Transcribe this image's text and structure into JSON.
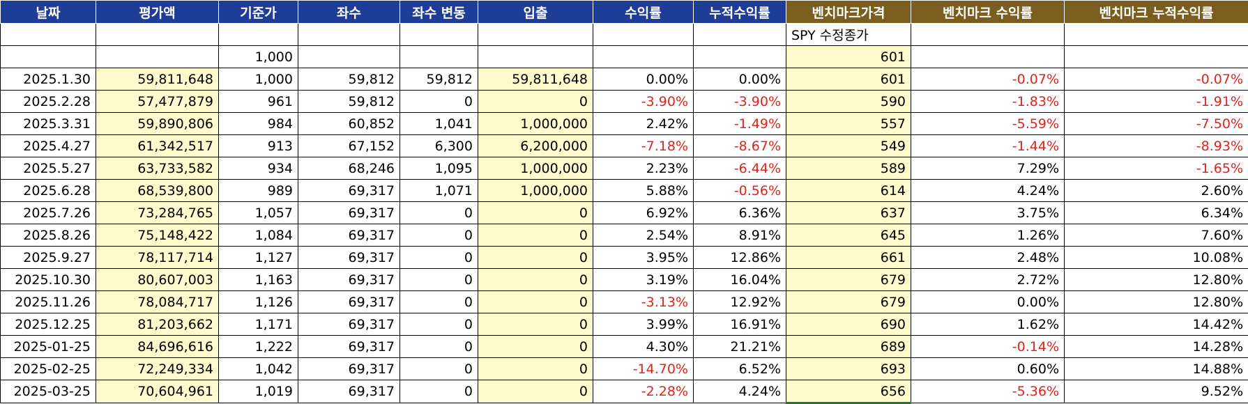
{
  "headers": [
    "날짜",
    "평가액",
    "기준가",
    "좌수",
    "좌수 변동",
    "입출",
    "수익률",
    "누적수익률",
    "벤치마크가격",
    "벤치마크 수익률",
    "벤치마크 누적수익률"
  ],
  "pre_rows": {
    "bench_label": "SPY 수정종가",
    "base_price": "1,000",
    "base_bench": "601"
  },
  "rows": [
    {
      "date": "2025.1.30",
      "value": "59,811,648",
      "nav": "1,000",
      "units": "59,812",
      "units_chg": "59,812",
      "flow": "59,811,648",
      "ret": "0.00%",
      "cum": "0.00%",
      "bench": "601",
      "bret": "-0.07%",
      "bcum": "-0.07%"
    },
    {
      "date": "2025.2.28",
      "value": "57,477,879",
      "nav": "961",
      "units": "59,812",
      "units_chg": "0",
      "flow": "0",
      "ret": "-3.90%",
      "cum": "-3.90%",
      "bench": "590",
      "bret": "-1.83%",
      "bcum": "-1.91%"
    },
    {
      "date": "2025.3.31",
      "value": "59,890,806",
      "nav": "984",
      "units": "60,852",
      "units_chg": "1,041",
      "flow": "1,000,000",
      "ret": "2.42%",
      "cum": "-1.49%",
      "bench": "557",
      "bret": "-5.59%",
      "bcum": "-7.50%"
    },
    {
      "date": "2025.4.27",
      "value": "61,342,517",
      "nav": "913",
      "units": "67,152",
      "units_chg": "6,300",
      "flow": "6,200,000",
      "ret": "-7.18%",
      "cum": "-8.67%",
      "bench": "549",
      "bret": "-1.44%",
      "bcum": "-8.93%"
    },
    {
      "date": "2025.5.27",
      "value": "63,733,582",
      "nav": "934",
      "units": "68,246",
      "units_chg": "1,095",
      "flow": "1,000,000",
      "ret": "2.23%",
      "cum": "-6.44%",
      "bench": "589",
      "bret": "7.29%",
      "bcum": "-1.65%"
    },
    {
      "date": "2025.6.28",
      "value": "68,539,800",
      "nav": "989",
      "units": "69,317",
      "units_chg": "1,071",
      "flow": "1,000,000",
      "ret": "5.88%",
      "cum": "-0.56%",
      "bench": "614",
      "bret": "4.24%",
      "bcum": "2.60%"
    },
    {
      "date": "2025.7.26",
      "value": "73,284,765",
      "nav": "1,057",
      "units": "69,317",
      "units_chg": "0",
      "flow": "0",
      "ret": "6.92%",
      "cum": "6.36%",
      "bench": "637",
      "bret": "3.75%",
      "bcum": "6.34%"
    },
    {
      "date": "2025.8.26",
      "value": "75,148,422",
      "nav": "1,084",
      "units": "69,317",
      "units_chg": "0",
      "flow": "0",
      "ret": "2.54%",
      "cum": "8.91%",
      "bench": "645",
      "bret": "1.26%",
      "bcum": "7.60%"
    },
    {
      "date": "2025.9.27",
      "value": "78,117,714",
      "nav": "1,127",
      "units": "69,317",
      "units_chg": "0",
      "flow": "0",
      "ret": "3.95%",
      "cum": "12.86%",
      "bench": "661",
      "bret": "2.48%",
      "bcum": "10.08%"
    },
    {
      "date": "2025.10.30",
      "value": "80,607,003",
      "nav": "1,163",
      "units": "69,317",
      "units_chg": "0",
      "flow": "0",
      "ret": "3.19%",
      "cum": "16.04%",
      "bench": "679",
      "bret": "2.72%",
      "bcum": "12.80%"
    },
    {
      "date": "2025.11.26",
      "value": "78,084,717",
      "nav": "1,126",
      "units": "69,317",
      "units_chg": "0",
      "flow": "0",
      "ret": "-3.13%",
      "cum": "12.92%",
      "bench": "679",
      "bret": "0.00%",
      "bcum": "12.80%"
    },
    {
      "date": "2025.12.25",
      "value": "81,203,662",
      "nav": "1,171",
      "units": "69,317",
      "units_chg": "0",
      "flow": "0",
      "ret": "3.99%",
      "cum": "16.91%",
      "bench": "690",
      "bret": "1.62%",
      "bcum": "14.42%"
    },
    {
      "date": "2025-01-25",
      "value": "84,696,616",
      "nav": "1,222",
      "units": "69,317",
      "units_chg": "0",
      "flow": "0",
      "ret": "4.30%",
      "cum": "21.21%",
      "bench": "689",
      "bret": "-0.14%",
      "bcum": "14.28%"
    },
    {
      "date": "2025-02-25",
      "value": "72,249,334",
      "nav": "1,042",
      "units": "69,317",
      "units_chg": "0",
      "flow": "0",
      "ret": "-14.70%",
      "cum": "6.52%",
      "bench": "693",
      "bret": "0.60%",
      "bcum": "14.88%"
    },
    {
      "date": "2025-03-25",
      "value": "70,604,961",
      "nav": "1,019",
      "units": "69,317",
      "units_chg": "0",
      "flow": "0",
      "ret": "-2.28%",
      "cum": "4.24%",
      "bench": "656",
      "bret": "-5.36%",
      "bcum": "9.52%"
    }
  ],
  "colors": {
    "header_blue": "#1f3c96",
    "header_gold": "#7a5e1f",
    "input_cell": "#fffacd",
    "negative_text": "#e32119"
  }
}
